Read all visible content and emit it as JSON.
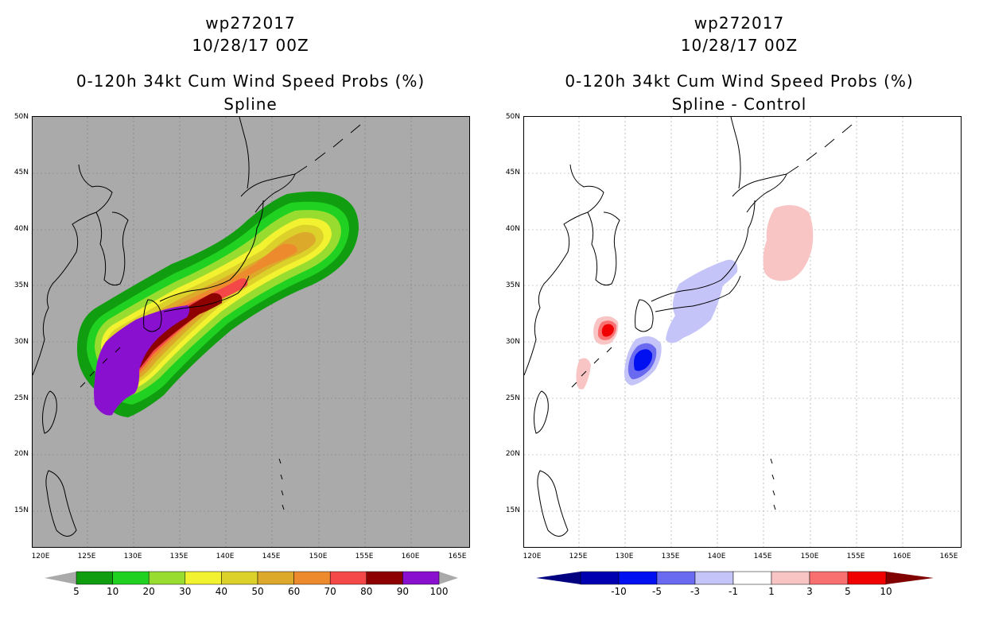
{
  "left": {
    "line1": "wp272017",
    "line2": "10/28/17 00Z",
    "line3": "0-120h 34kt Cum Wind Speed Probs (%)",
    "line4": "Spline",
    "colorbar": {
      "colors": [
        "#109d10",
        "#21d121",
        "#98dc30",
        "#f2f230",
        "#dcd12a",
        "#dca92a",
        "#ee8a2e",
        "#f44848",
        "#8d0101",
        "#8a10d0"
      ],
      "labels": [
        "5",
        "10",
        "20",
        "30",
        "40",
        "50",
        "60",
        "70",
        "80",
        "90",
        "100"
      ]
    }
  },
  "right": {
    "line1": "wp272017",
    "line2": "10/28/17 00Z",
    "line3": "0-120h 34kt Cum Wind Speed Probs (%)",
    "line4": "Spline - Control",
    "colorbar": {
      "colors": [
        "#0000b0",
        "#0010f0",
        "#6a6af0",
        "#c4c4f8",
        "#ffffff",
        "#f8c4c4",
        "#f87070",
        "#f00000"
      ],
      "labels": [
        "-10",
        "-5",
        "-3",
        "-1",
        "1",
        "3",
        "5",
        "10"
      ]
    }
  },
  "axes": {
    "lat_labels": [
      "50N",
      "45N",
      "40N",
      "35N",
      "30N",
      "25N",
      "20N",
      "15N"
    ],
    "lon_labels": [
      "120E",
      "125E",
      "130E",
      "135E",
      "140E",
      "145E",
      "150E",
      "155E",
      "160E",
      "165E"
    ]
  }
}
